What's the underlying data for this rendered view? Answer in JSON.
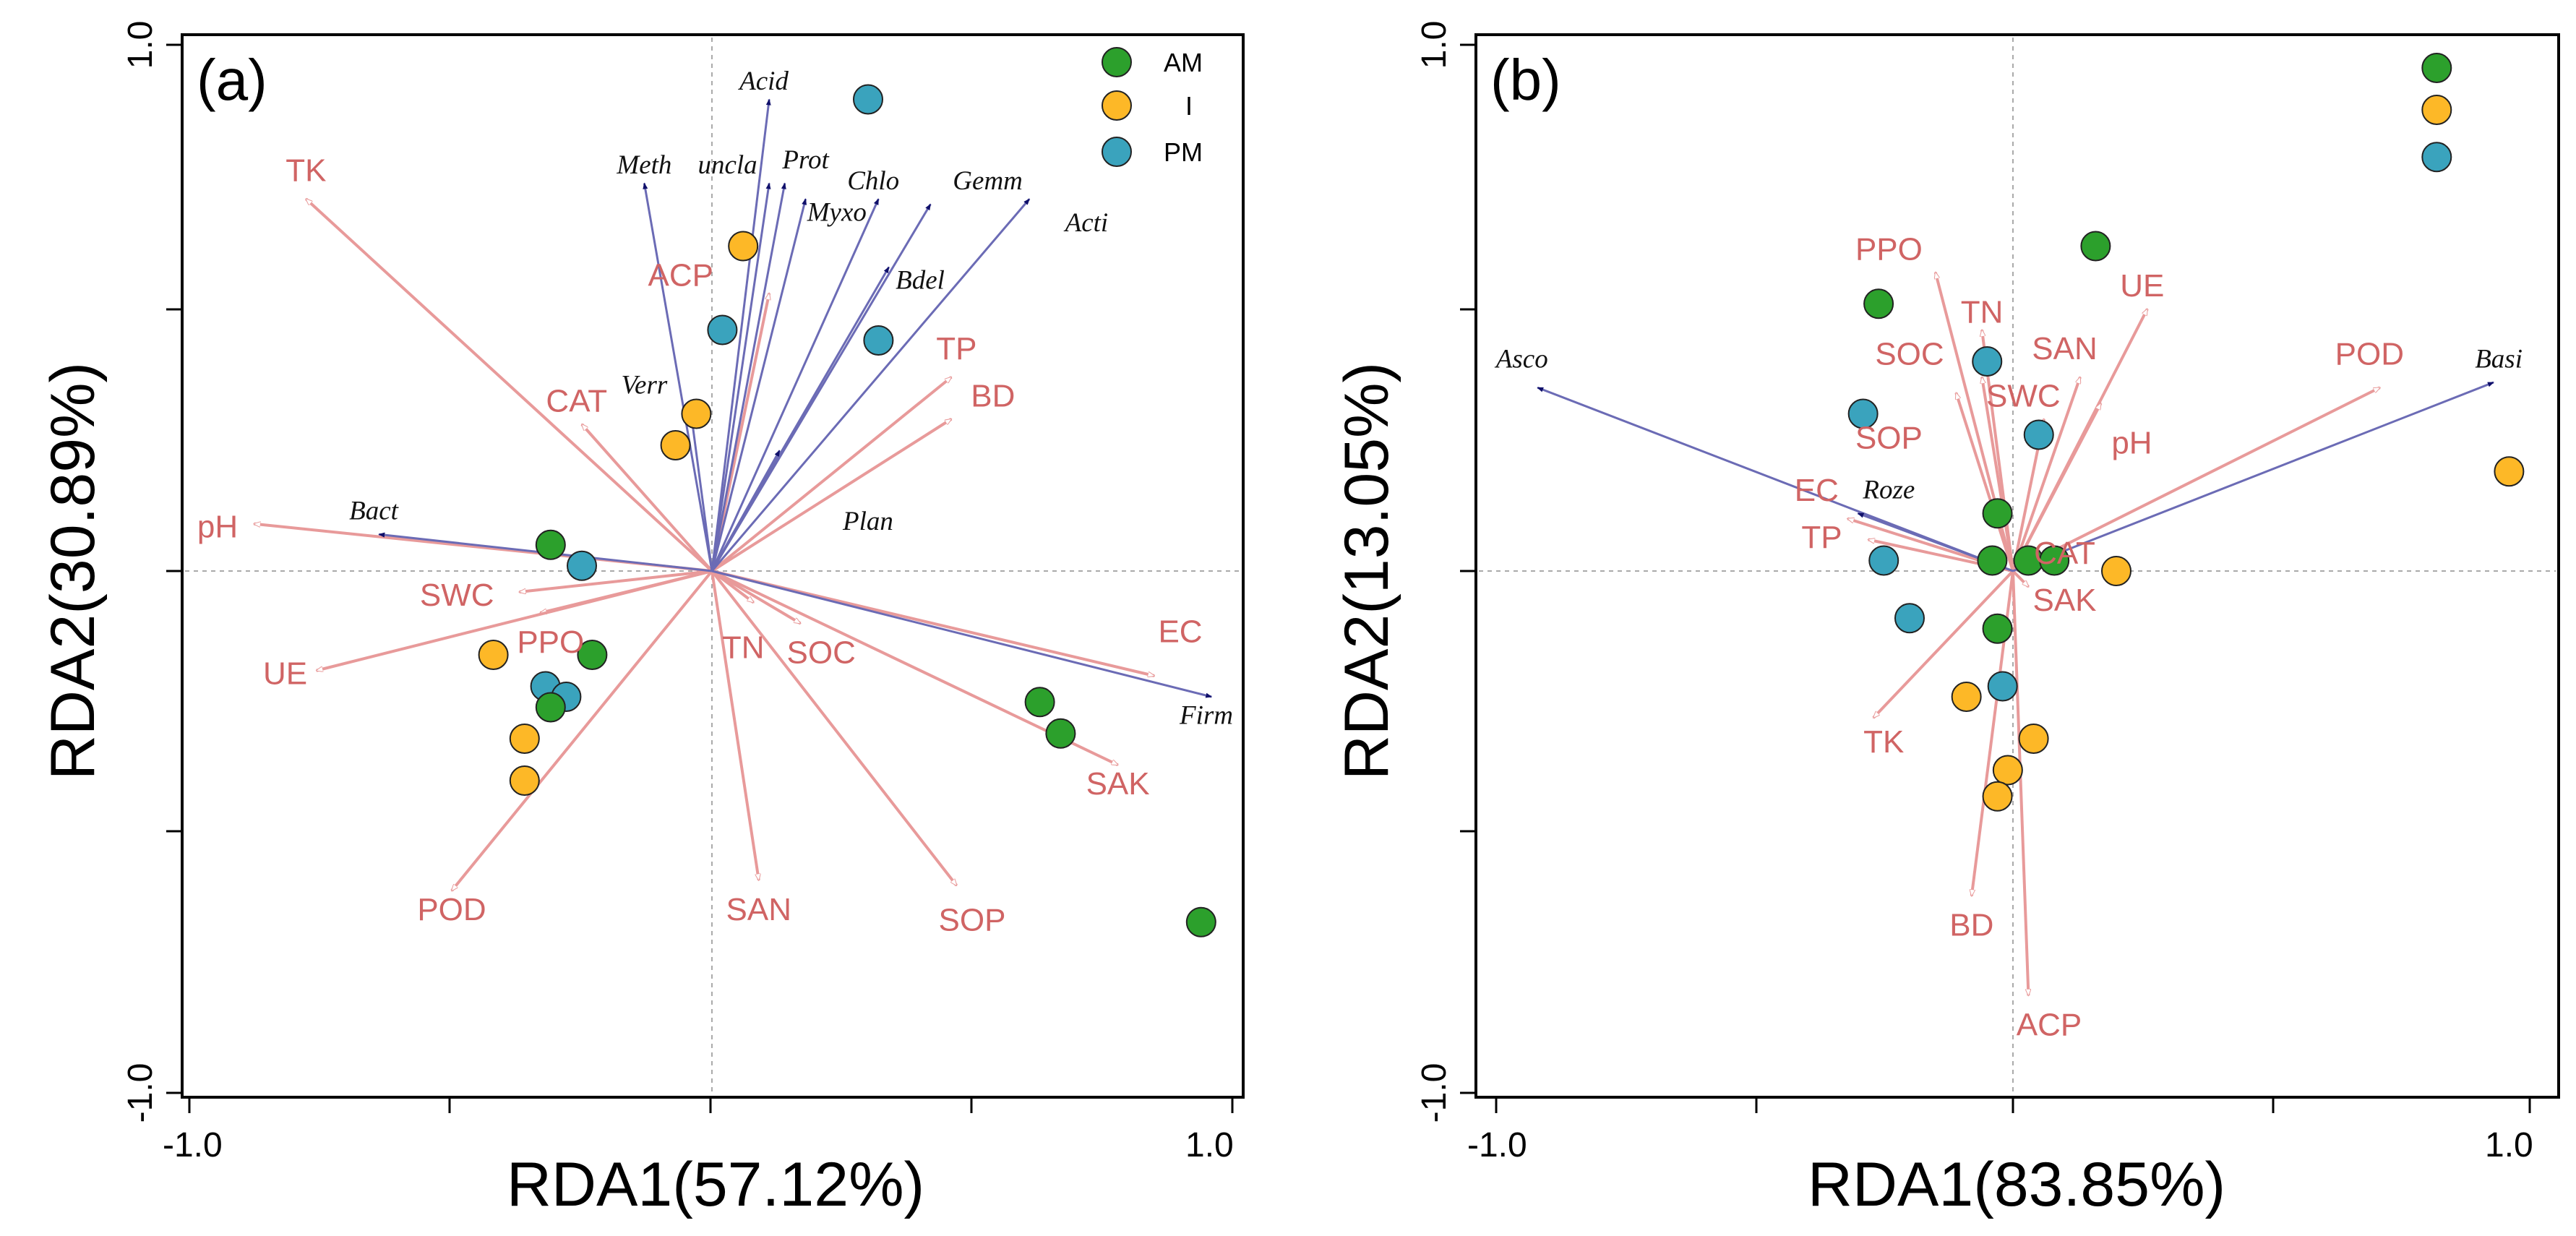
{
  "colors": {
    "env_arrow": "#e89a9a",
    "env_label": "#d06464",
    "species_arrow": "#6b6bb5",
    "species_head": "#10106a",
    "AM": "#2ca02c",
    "I": "#fdb827",
    "PM": "#3aa3bd",
    "frame": "#000000",
    "zero_line": "#aaaaaa"
  },
  "chart_data": [
    {
      "type": "scatter",
      "panel_label": "(a)",
      "xlabel": "RDA1(57.12%)",
      "ylabel": "RDA2(30.89%)",
      "xlim": [
        -1.0,
        1.0
      ],
      "ylim": [
        -1.0,
        1.0
      ],
      "x_tick_labels": [
        "-1.0",
        "1.0"
      ],
      "y_tick_labels": [
        "-1.0",
        "1.0"
      ],
      "legend": [
        {
          "label": "AM",
          "color": "#2ca02c"
        },
        {
          "label": "I",
          "color": "#fdb827"
        },
        {
          "label": "PM",
          "color": "#3aa3bd"
        }
      ],
      "env_vectors": [
        {
          "label": "TK",
          "x": -0.78,
          "y": 0.71,
          "lx": -0.78,
          "ly": 0.76
        },
        {
          "label": "ACP",
          "x": 0.11,
          "y": 0.53,
          "lx": -0.06,
          "ly": 0.56
        },
        {
          "label": "CAT",
          "x": -0.25,
          "y": 0.28,
          "lx": -0.26,
          "ly": 0.32
        },
        {
          "label": "TP",
          "x": 0.46,
          "y": 0.37,
          "lx": 0.47,
          "ly": 0.42
        },
        {
          "label": "BD",
          "x": 0.46,
          "y": 0.29,
          "lx": 0.54,
          "ly": 0.33
        },
        {
          "label": "pH",
          "x": -0.88,
          "y": 0.09,
          "lx": -0.95,
          "ly": 0.08
        },
        {
          "label": "SWC",
          "x": -0.37,
          "y": -0.04,
          "lx": -0.49,
          "ly": -0.05
        },
        {
          "label": "PPO",
          "x": -0.33,
          "y": -0.08,
          "lx": -0.31,
          "ly": -0.14
        },
        {
          "label": "UE",
          "x": -0.76,
          "y": -0.19,
          "lx": -0.82,
          "ly": -0.2
        },
        {
          "label": "POD",
          "x": -0.5,
          "y": -0.61,
          "lx": -0.5,
          "ly": -0.65
        },
        {
          "label": "TN",
          "x": 0.08,
          "y": -0.06,
          "lx": 0.06,
          "ly": -0.15
        },
        {
          "label": "SOC",
          "x": 0.17,
          "y": -0.1,
          "lx": 0.21,
          "ly": -0.16
        },
        {
          "label": "SAN",
          "x": 0.09,
          "y": -0.59,
          "lx": 0.09,
          "ly": -0.65
        },
        {
          "label": "SOP",
          "x": 0.47,
          "y": -0.6,
          "lx": 0.5,
          "ly": -0.67
        },
        {
          "label": "SAK",
          "x": 0.78,
          "y": -0.37,
          "lx": 0.78,
          "ly": -0.41
        },
        {
          "label": "EC",
          "x": 0.85,
          "y": -0.2,
          "lx": 0.9,
          "ly": -0.12
        }
      ],
      "species_vectors": [
        {
          "label": "Acid",
          "x": 0.11,
          "y": 0.9,
          "lx": 0.1,
          "ly": 0.93
        },
        {
          "label": "Meth",
          "x": -0.13,
          "y": 0.74,
          "lx": -0.13,
          "ly": 0.77
        },
        {
          "label": "uncla",
          "x": 0.11,
          "y": 0.74,
          "lx": 0.03,
          "ly": 0.77
        },
        {
          "label": "Prot",
          "x": 0.14,
          "y": 0.74,
          "lx": 0.18,
          "ly": 0.78
        },
        {
          "label": "Myxo",
          "x": 0.18,
          "y": 0.71,
          "lx": 0.24,
          "ly": 0.68
        },
        {
          "label": "Chlo",
          "x": 0.32,
          "y": 0.71,
          "lx": 0.31,
          "ly": 0.74
        },
        {
          "label": "Gemm",
          "x": 0.42,
          "y": 0.7,
          "lx": 0.53,
          "ly": 0.74
        },
        {
          "label": "Acti",
          "x": 0.61,
          "y": 0.71,
          "lx": 0.72,
          "ly": 0.66
        },
        {
          "label": "Bdel",
          "x": 0.34,
          "y": 0.58,
          "lx": 0.4,
          "ly": 0.55
        },
        {
          "label": "Verr",
          "x": -0.04,
          "y": 0.3,
          "lx": -0.13,
          "ly": 0.35
        },
        {
          "label": "Plan",
          "x": 0.13,
          "y": 0.23,
          "lx": 0.3,
          "ly": 0.09
        },
        {
          "label": "Bact",
          "x": -0.64,
          "y": 0.07,
          "lx": -0.65,
          "ly": 0.11
        },
        {
          "label": "Firm",
          "x": 0.96,
          "y": -0.24,
          "lx": 0.95,
          "ly": -0.28
        }
      ],
      "samples": [
        {
          "group": "PM",
          "x": 0.3,
          "y": 0.9
        },
        {
          "group": "I",
          "x": 0.06,
          "y": 0.62
        },
        {
          "group": "PM",
          "x": 0.02,
          "y": 0.46
        },
        {
          "group": "PM",
          "x": 0.32,
          "y": 0.44
        },
        {
          "group": "I",
          "x": -0.03,
          "y": 0.3
        },
        {
          "group": "I",
          "x": -0.07,
          "y": 0.24
        },
        {
          "group": "AM",
          "x": -0.31,
          "y": 0.05
        },
        {
          "group": "PM",
          "x": -0.25,
          "y": 0.01
        },
        {
          "group": "AM",
          "x": -0.23,
          "y": -0.16
        },
        {
          "group": "I",
          "x": -0.42,
          "y": -0.16
        },
        {
          "group": "PM",
          "x": -0.32,
          "y": -0.22
        },
        {
          "group": "PM",
          "x": -0.28,
          "y": -0.24
        },
        {
          "group": "AM",
          "x": -0.31,
          "y": -0.26
        },
        {
          "group": "I",
          "x": -0.36,
          "y": -0.32
        },
        {
          "group": "I",
          "x": -0.36,
          "y": -0.4
        },
        {
          "group": "AM",
          "x": 0.63,
          "y": -0.25
        },
        {
          "group": "AM",
          "x": 0.67,
          "y": -0.31
        },
        {
          "group": "AM",
          "x": 0.94,
          "y": -0.67
        }
      ]
    },
    {
      "type": "scatter",
      "panel_label": "(b)",
      "xlabel": "RDA1(83.85%)",
      "ylabel": "RDA2(13.05%)",
      "xlim": [
        -1.0,
        1.0
      ],
      "ylim": [
        -1.0,
        1.0
      ],
      "x_tick_labels": [
        "-1.0",
        "1.0"
      ],
      "y_tick_labels": [
        "-1.0",
        "1.0"
      ],
      "legend_markers": [
        {
          "group": "AM",
          "x": 0.82,
          "y": 0.96
        },
        {
          "group": "I",
          "x": 0.82,
          "y": 0.88
        },
        {
          "group": "PM",
          "x": 0.82,
          "y": 0.79
        }
      ],
      "env_vectors": [
        {
          "label": "PPO",
          "x": -0.15,
          "y": 0.57,
          "lx": -0.24,
          "ly": 0.61
        },
        {
          "label": "TN",
          "x": -0.06,
          "y": 0.46,
          "lx": -0.06,
          "ly": 0.49
        },
        {
          "label": "UE",
          "x": 0.26,
          "y": 0.5,
          "lx": 0.25,
          "ly": 0.54
        },
        {
          "label": "SOC",
          "x": -0.06,
          "y": 0.37,
          "lx": -0.2,
          "ly": 0.41
        },
        {
          "label": "SAN",
          "x": 0.13,
          "y": 0.37,
          "lx": 0.1,
          "ly": 0.42
        },
        {
          "label": "SWC",
          "x": 0.06,
          "y": 0.29,
          "lx": 0.02,
          "ly": 0.33
        },
        {
          "label": "SOP",
          "x": -0.11,
          "y": 0.34,
          "lx": -0.24,
          "ly": 0.25
        },
        {
          "label": "pH",
          "x": 0.17,
          "y": 0.32,
          "lx": 0.23,
          "ly": 0.24
        },
        {
          "label": "POD",
          "x": 0.71,
          "y": 0.35,
          "lx": 0.69,
          "ly": 0.41
        },
        {
          "label": "EC",
          "x": -0.32,
          "y": 0.1,
          "lx": -0.38,
          "ly": 0.15
        },
        {
          "label": "TP",
          "x": -0.28,
          "y": 0.06,
          "lx": -0.37,
          "ly": 0.06
        },
        {
          "label": "CAT",
          "x": 0.01,
          "y": 0.02,
          "lx": 0.1,
          "ly": 0.03
        },
        {
          "label": "SAK",
          "x": 0.03,
          "y": -0.03,
          "lx": 0.1,
          "ly": -0.06
        },
        {
          "label": "TK",
          "x": -0.27,
          "y": -0.28,
          "lx": -0.25,
          "ly": -0.33
        },
        {
          "label": "BD",
          "x": -0.08,
          "y": -0.62,
          "lx": -0.08,
          "ly": -0.68
        },
        {
          "label": "ACP",
          "x": 0.03,
          "y": -0.81,
          "lx": 0.07,
          "ly": -0.87
        }
      ],
      "species_vectors": [
        {
          "label": "Asco",
          "x": -0.92,
          "y": 0.35,
          "lx": -0.95,
          "ly": 0.4
        },
        {
          "label": "Basi",
          "x": 0.93,
          "y": 0.36,
          "lx": 0.94,
          "ly": 0.4
        },
        {
          "label": "Roze",
          "x": -0.3,
          "y": 0.11,
          "lx": -0.24,
          "ly": 0.15
        }
      ],
      "samples": [
        {
          "group": "AM",
          "x": 0.16,
          "y": 0.62
        },
        {
          "group": "AM",
          "x": -0.26,
          "y": 0.51
        },
        {
          "group": "PM",
          "x": -0.05,
          "y": 0.4
        },
        {
          "group": "PM",
          "x": -0.29,
          "y": 0.3
        },
        {
          "group": "PM",
          "x": 0.05,
          "y": 0.26
        },
        {
          "group": "I",
          "x": 0.96,
          "y": 0.19
        },
        {
          "group": "AM",
          "x": -0.03,
          "y": 0.11
        },
        {
          "group": "AM",
          "x": -0.04,
          "y": 0.02
        },
        {
          "group": "AM",
          "x": 0.03,
          "y": 0.02
        },
        {
          "group": "AM",
          "x": 0.08,
          "y": 0.02
        },
        {
          "group": "I",
          "x": 0.2,
          "y": 0.0
        },
        {
          "group": "PM",
          "x": -0.25,
          "y": 0.02
        },
        {
          "group": "PM",
          "x": -0.2,
          "y": -0.09
        },
        {
          "group": "AM",
          "x": -0.03,
          "y": -0.11
        },
        {
          "group": "PM",
          "x": -0.02,
          "y": -0.22
        },
        {
          "group": "I",
          "x": -0.09,
          "y": -0.24
        },
        {
          "group": "I",
          "x": 0.04,
          "y": -0.32
        },
        {
          "group": "I",
          "x": -0.01,
          "y": -0.38
        },
        {
          "group": "I",
          "x": -0.03,
          "y": -0.43
        }
      ]
    }
  ]
}
